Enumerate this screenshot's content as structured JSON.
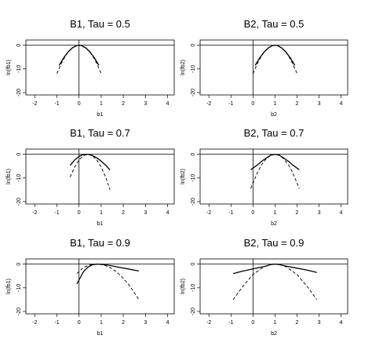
{
  "chart_data": [
    {
      "type": "line",
      "title": "B1, Tau = 0.5",
      "xlabel": "b1",
      "ylabel": "ln(fb1)",
      "xlim": [
        -2.4,
        4.3
      ],
      "ylim": [
        -21,
        2.2
      ],
      "xticks": [
        -2,
        -1,
        0,
        1,
        2,
        3,
        4
      ],
      "xtick_labels": [
        "-2",
        "-1",
        "0",
        "1",
        "2",
        "3",
        "4"
      ],
      "yticks": [
        0,
        -10,
        -20
      ],
      "ytick_labels": [
        "0",
        "-10",
        "-20"
      ],
      "hline": 0,
      "vline": 0,
      "series": [
        {
          "style": "solid",
          "x": [
            -0.9,
            -0.7,
            -0.5,
            -0.3,
            -0.1,
            0.0,
            0.1,
            0.3,
            0.5,
            0.7,
            0.9
          ],
          "y": [
            -8.5,
            -5.4,
            -2.9,
            -1.1,
            -0.1,
            0.0,
            -0.1,
            -1.1,
            -2.9,
            -5.4,
            -8.5
          ]
        },
        {
          "style": "dashed",
          "x": [
            -1.0,
            -0.8,
            -0.6,
            -0.4,
            -0.2,
            0.0,
            0.2,
            0.4,
            0.6,
            0.8,
            1.0
          ],
          "y": [
            -12.0,
            -7.7,
            -4.3,
            -1.9,
            -0.5,
            0.0,
            -0.5,
            -1.9,
            -4.3,
            -7.7,
            -12.0
          ]
        }
      ]
    },
    {
      "type": "line",
      "title": "B2, Tau = 0.5",
      "xlabel": "b2",
      "ylabel": "ln(fb2)",
      "xlim": [
        -2.4,
        4.3
      ],
      "ylim": [
        -21,
        2.2
      ],
      "xticks": [
        -2,
        -1,
        0,
        1,
        2,
        3,
        4
      ],
      "xtick_labels": [
        "-2",
        "-1",
        "0",
        "1",
        "2",
        "3",
        "4"
      ],
      "yticks": [
        0,
        -10,
        -20
      ],
      "ytick_labels": [
        "0",
        "-10",
        "-20"
      ],
      "hline": 0,
      "vline": 0,
      "series": [
        {
          "style": "solid",
          "x": [
            0.1,
            0.3,
            0.5,
            0.7,
            0.9,
            1.0,
            1.1,
            1.3,
            1.5,
            1.7,
            1.9
          ],
          "y": [
            -8.5,
            -5.4,
            -2.9,
            -1.1,
            -0.1,
            0.0,
            -0.1,
            -1.1,
            -2.9,
            -5.4,
            -8.5
          ]
        },
        {
          "style": "dashed",
          "x": [
            0.0,
            0.2,
            0.4,
            0.6,
            0.8,
            1.0,
            1.2,
            1.4,
            1.6,
            1.8,
            2.0
          ],
          "y": [
            -12.0,
            -7.7,
            -4.3,
            -1.9,
            -0.5,
            0.0,
            -0.5,
            -1.9,
            -4.3,
            -7.7,
            -12.0
          ]
        }
      ]
    },
    {
      "type": "line",
      "title": "B1, Tau = 0.7",
      "xlabel": "b1",
      "ylabel": "ln(fb1)",
      "xlim": [
        -2.4,
        4.3
      ],
      "ylim": [
        -21,
        2.2
      ],
      "xticks": [
        -2,
        -1,
        0,
        1,
        2,
        3,
        4
      ],
      "xtick_labels": [
        "-2",
        "-1",
        "0",
        "1",
        "2",
        "3",
        "4"
      ],
      "yticks": [
        0,
        -10,
        -20
      ],
      "ytick_labels": [
        "0",
        "-10",
        "-20"
      ],
      "hline": 0,
      "vline": 0,
      "series": [
        {
          "style": "solid",
          "x": [
            -0.4,
            -0.2,
            0.0,
            0.2,
            0.4,
            0.6,
            0.8,
            1.0,
            1.2,
            1.4
          ],
          "y": [
            -4.7,
            -2.4,
            -0.9,
            -0.1,
            0.0,
            -0.5,
            -1.5,
            -2.9,
            -4.6,
            -6.6
          ]
        },
        {
          "style": "dashed",
          "x": [
            -0.4,
            -0.2,
            0.0,
            0.2,
            0.4,
            0.6,
            0.8,
            1.0,
            1.2,
            1.4
          ],
          "y": [
            -9.6,
            -5.4,
            -2.4,
            -0.6,
            0.0,
            -0.6,
            -2.4,
            -5.4,
            -9.6,
            -15.0
          ]
        }
      ]
    },
    {
      "type": "line",
      "title": "B2, Tau = 0.7",
      "xlabel": "b2",
      "ylabel": "ln(fb2)",
      "xlim": [
        -2.4,
        4.3
      ],
      "ylim": [
        -21,
        2.2
      ],
      "xticks": [
        -2,
        -1,
        0,
        1,
        2,
        3,
        4
      ],
      "xtick_labels": [
        "-2",
        "-1",
        "0",
        "1",
        "2",
        "3",
        "4"
      ],
      "yticks": [
        0,
        -10,
        -20
      ],
      "ytick_labels": [
        "0",
        "-10",
        "-20"
      ],
      "hline": 0,
      "vline": 0,
      "series": [
        {
          "style": "solid",
          "x": [
            -0.1,
            0.2,
            0.4,
            0.6,
            0.8,
            1.0,
            1.2,
            1.4,
            1.6,
            1.8,
            2.1
          ],
          "y": [
            -6.5,
            -4.5,
            -2.9,
            -1.6,
            -0.4,
            0.0,
            -0.4,
            -1.6,
            -2.9,
            -4.5,
            -6.5
          ]
        },
        {
          "style": "dashed",
          "x": [
            -0.1,
            0.2,
            0.4,
            0.6,
            0.8,
            1.0,
            1.2,
            1.4,
            1.6,
            1.8,
            2.1
          ],
          "y": [
            -14.5,
            -7.7,
            -4.3,
            -1.9,
            -0.5,
            0.0,
            -0.5,
            -1.9,
            -4.3,
            -7.7,
            -14.5
          ]
        }
      ]
    },
    {
      "type": "line",
      "title": "B1, Tau = 0.9",
      "xlabel": "b1",
      "ylabel": "ln(fb1)",
      "xlim": [
        -2.4,
        4.3
      ],
      "ylim": [
        -21,
        2.2
      ],
      "xticks": [
        -2,
        -1,
        0,
        1,
        2,
        3,
        4
      ],
      "xtick_labels": [
        "-2",
        "-1",
        "0",
        "1",
        "2",
        "3",
        "4"
      ],
      "yticks": [
        0,
        -10,
        -20
      ],
      "ytick_labels": [
        "0",
        "-10",
        "-20"
      ],
      "hline": 0,
      "vline": 0,
      "series": [
        {
          "style": "solid",
          "x": [
            -0.1,
            0.2,
            0.4,
            0.6,
            0.8,
            1.0,
            1.4,
            1.8,
            2.2,
            2.7
          ],
          "y": [
            -8.4,
            -3.2,
            -1.3,
            -0.3,
            0.0,
            -0.1,
            -0.6,
            -1.3,
            -2.0,
            -2.9
          ]
        },
        {
          "style": "dashed",
          "x": [
            -0.1,
            0.2,
            0.5,
            0.8,
            1.1,
            1.4,
            1.7,
            2.0,
            2.3,
            2.7
          ],
          "y": [
            -4.0,
            -1.4,
            -0.3,
            0.0,
            -0.3,
            -1.4,
            -3.3,
            -6.0,
            -9.3,
            -15.0
          ]
        }
      ]
    },
    {
      "type": "line",
      "title": "B2, Tau = 0.9",
      "xlabel": "b2",
      "ylabel": "ln(fb2)",
      "xlim": [
        -2.4,
        4.3
      ],
      "ylim": [
        -21,
        2.2
      ],
      "xticks": [
        -2,
        -1,
        0,
        1,
        2,
        3,
        4
      ],
      "xtick_labels": [
        "-2",
        "-1",
        "0",
        "1",
        "2",
        "3",
        "4"
      ],
      "yticks": [
        0,
        -10,
        -20
      ],
      "ytick_labels": [
        "0",
        "-10",
        "-20"
      ],
      "hline": 0,
      "vline": 0,
      "series": [
        {
          "style": "solid",
          "x": [
            -0.9,
            -0.5,
            0.0,
            0.5,
            0.8,
            1.0,
            1.2,
            1.5,
            2.0,
            2.5,
            2.9
          ],
          "y": [
            -4.0,
            -3.0,
            -2.0,
            -1.0,
            -0.2,
            0.0,
            -0.2,
            -0.8,
            -1.7,
            -2.6,
            -3.5
          ]
        },
        {
          "style": "dashed",
          "x": [
            -0.9,
            -0.5,
            0.0,
            0.5,
            0.8,
            1.0,
            1.2,
            1.5,
            2.0,
            2.5,
            2.9
          ],
          "y": [
            -15.0,
            -9.9,
            -4.4,
            -1.1,
            -0.2,
            0.0,
            -0.2,
            -1.1,
            -4.4,
            -9.9,
            -15.0
          ]
        }
      ]
    }
  ]
}
